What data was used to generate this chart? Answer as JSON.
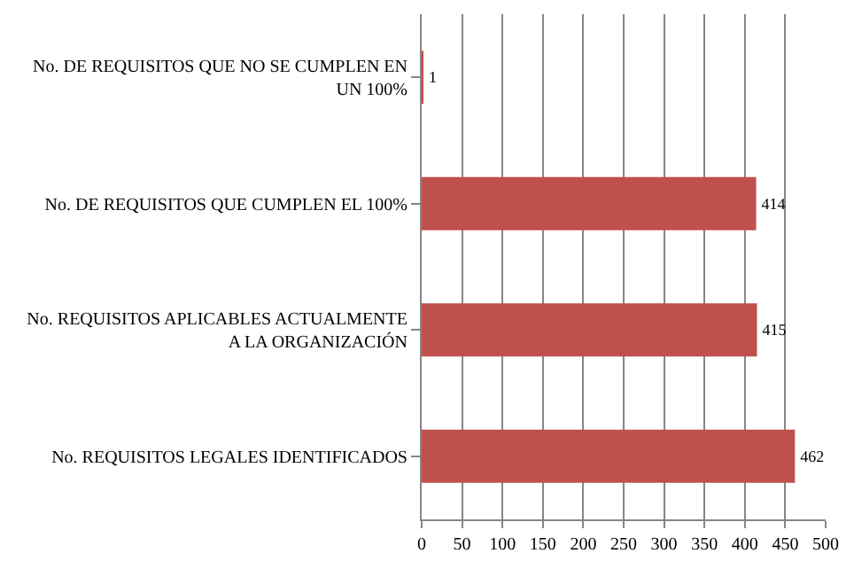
{
  "chart_data": {
    "type": "bar",
    "orientation": "horizontal",
    "categories": [
      "No. DE REQUISITOS QUE NO SE CUMPLEN EN UN 100%",
      "No. DE REQUISITOS QUE CUMPLEN EL 100%",
      "No. REQUISITOS APLICABLES ACTUALMENTE A LA ORGANIZACIÓN",
      "No. REQUISITOS LEGALES IDENTIFICADOS"
    ],
    "values": [
      1,
      414,
      415,
      462
    ],
    "color": "#c0504d",
    "data_labels": true,
    "grid": "x",
    "xlim": [
      0,
      500
    ],
    "xticks": [
      0,
      50,
      100,
      150,
      200,
      250,
      300,
      350,
      400,
      450,
      500
    ]
  }
}
